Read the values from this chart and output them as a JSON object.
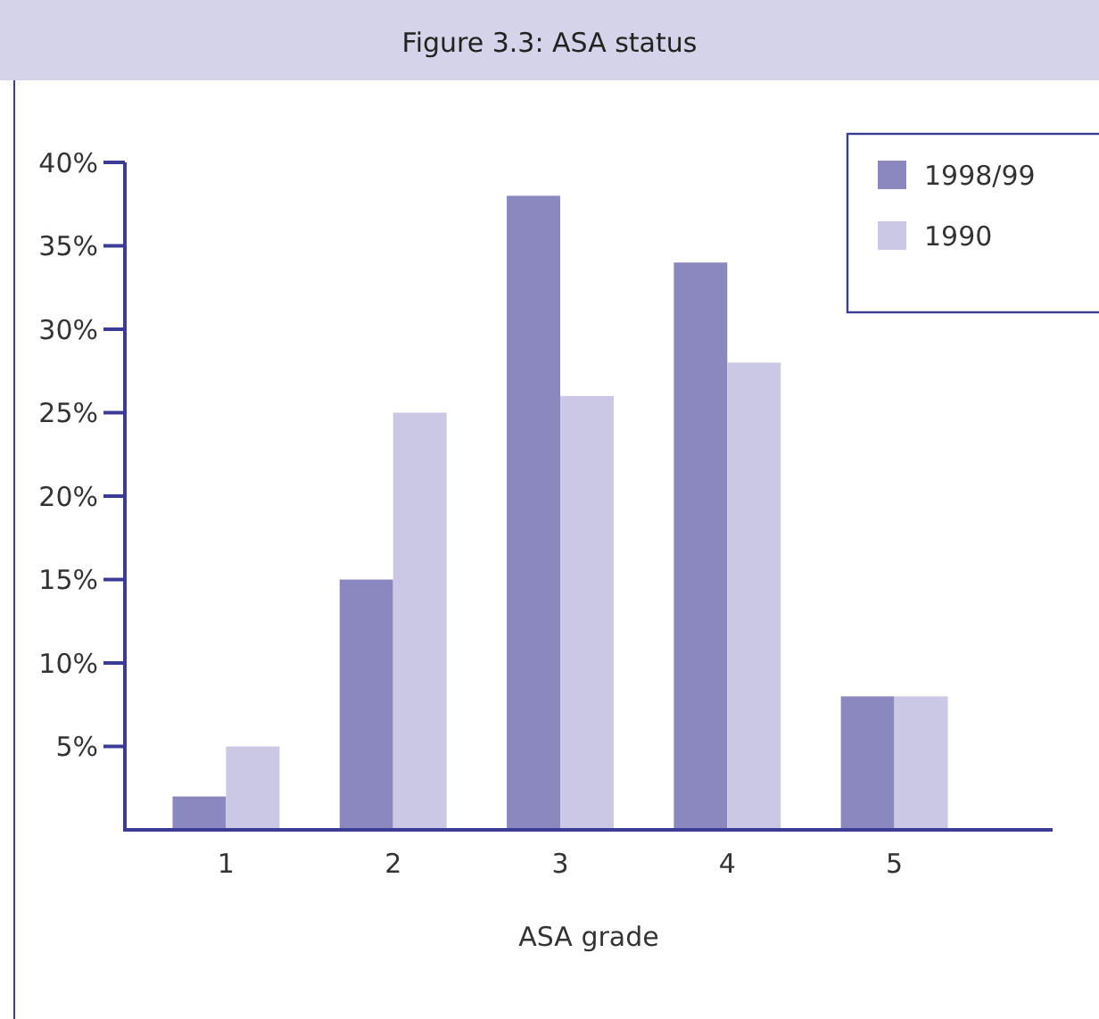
{
  "chart_data": {
    "type": "bar",
    "title": "Figure 3.3: ASA status",
    "xlabel": "ASA grade",
    "categories": [
      "1",
      "2",
      "3",
      "4",
      "5"
    ],
    "series": [
      {
        "name": "1998/99",
        "color": "#8b88c0",
        "values": [
          2,
          15,
          38,
          34,
          8
        ]
      },
      {
        "name": "1990",
        "color": "#cac8e4",
        "values": [
          5,
          25,
          26,
          28,
          8
        ]
      }
    ],
    "ylim": [
      0,
      40
    ],
    "yticks": [
      {
        "value": 5,
        "label": "5%"
      },
      {
        "value": 10,
        "label": "10%"
      },
      {
        "value": 15,
        "label": "15%"
      },
      {
        "value": 20,
        "label": "20%"
      },
      {
        "value": 25,
        "label": "25%"
      },
      {
        "value": 30,
        "label": "30%"
      },
      {
        "value": 35,
        "label": "35%"
      },
      {
        "value": 40,
        "label": "40%"
      }
    ],
    "grid": false,
    "legend": "top right"
  }
}
